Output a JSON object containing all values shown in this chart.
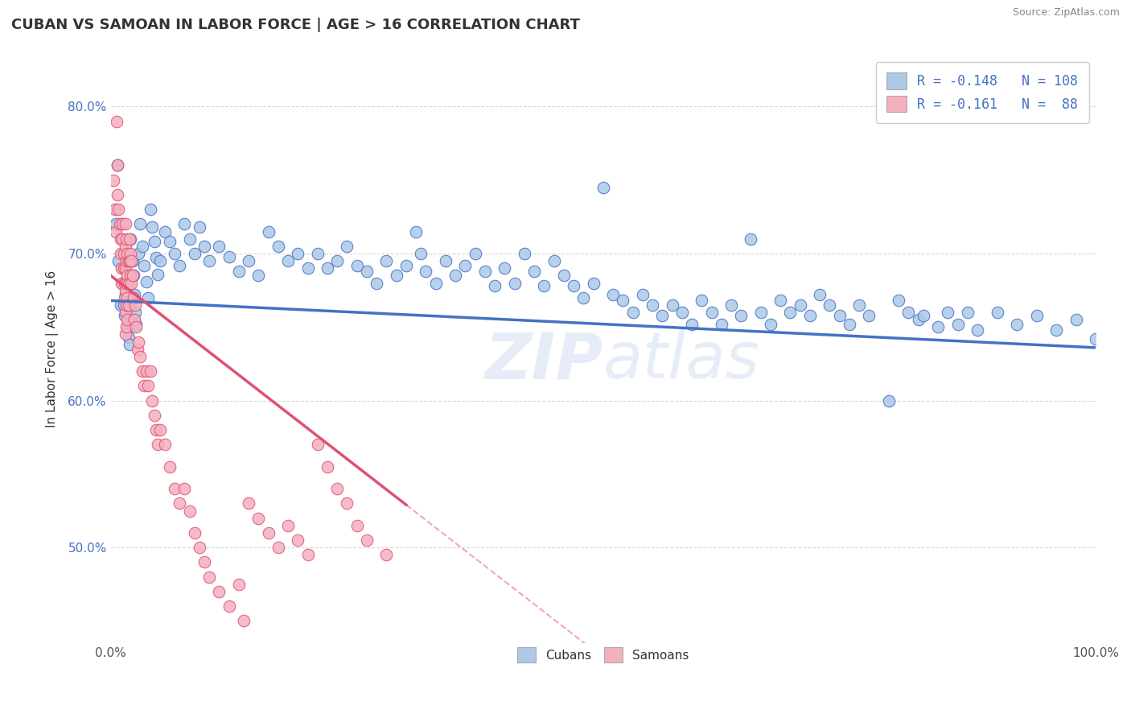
{
  "title": "CUBAN VS SAMOAN IN LABOR FORCE | AGE > 16 CORRELATION CHART",
  "source": "Source: ZipAtlas.com",
  "ylabel": "In Labor Force | Age > 16",
  "xlim": [
    0.0,
    1.0
  ],
  "ylim": [
    0.435,
    0.835
  ],
  "cuban_color": "#adc8e8",
  "samoan_color": "#f5b0c0",
  "cuban_line_color": "#4472c4",
  "samoan_line_color": "#e05070",
  "cuban_slope": -0.032,
  "cuban_intercept": 0.668,
  "samoan_slope": -0.52,
  "samoan_intercept": 0.685,
  "cuban_points": [
    [
      0.005,
      0.72
    ],
    [
      0.007,
      0.76
    ],
    [
      0.008,
      0.695
    ],
    [
      0.01,
      0.665
    ],
    [
      0.012,
      0.68
    ],
    [
      0.013,
      0.665
    ],
    [
      0.014,
      0.658
    ],
    [
      0.015,
      0.672
    ],
    [
      0.016,
      0.66
    ],
    [
      0.017,
      0.65
    ],
    [
      0.018,
      0.643
    ],
    [
      0.019,
      0.638
    ],
    [
      0.02,
      0.71
    ],
    [
      0.022,
      0.695
    ],
    [
      0.023,
      0.685
    ],
    [
      0.024,
      0.672
    ],
    [
      0.025,
      0.66
    ],
    [
      0.026,
      0.652
    ],
    [
      0.028,
      0.7
    ],
    [
      0.03,
      0.72
    ],
    [
      0.032,
      0.705
    ],
    [
      0.034,
      0.692
    ],
    [
      0.036,
      0.681
    ],
    [
      0.038,
      0.67
    ],
    [
      0.04,
      0.73
    ],
    [
      0.042,
      0.718
    ],
    [
      0.044,
      0.708
    ],
    [
      0.046,
      0.697
    ],
    [
      0.048,
      0.686
    ],
    [
      0.05,
      0.695
    ],
    [
      0.055,
      0.715
    ],
    [
      0.06,
      0.708
    ],
    [
      0.065,
      0.7
    ],
    [
      0.07,
      0.692
    ],
    [
      0.075,
      0.72
    ],
    [
      0.08,
      0.71
    ],
    [
      0.085,
      0.7
    ],
    [
      0.09,
      0.718
    ],
    [
      0.095,
      0.705
    ],
    [
      0.1,
      0.695
    ],
    [
      0.11,
      0.705
    ],
    [
      0.12,
      0.698
    ],
    [
      0.13,
      0.688
    ],
    [
      0.14,
      0.695
    ],
    [
      0.15,
      0.685
    ],
    [
      0.16,
      0.715
    ],
    [
      0.17,
      0.705
    ],
    [
      0.18,
      0.695
    ],
    [
      0.19,
      0.7
    ],
    [
      0.2,
      0.69
    ],
    [
      0.21,
      0.7
    ],
    [
      0.22,
      0.69
    ],
    [
      0.23,
      0.695
    ],
    [
      0.24,
      0.705
    ],
    [
      0.25,
      0.692
    ],
    [
      0.26,
      0.688
    ],
    [
      0.27,
      0.68
    ],
    [
      0.28,
      0.695
    ],
    [
      0.29,
      0.685
    ],
    [
      0.3,
      0.692
    ],
    [
      0.31,
      0.715
    ],
    [
      0.315,
      0.7
    ],
    [
      0.32,
      0.688
    ],
    [
      0.33,
      0.68
    ],
    [
      0.34,
      0.695
    ],
    [
      0.35,
      0.685
    ],
    [
      0.36,
      0.692
    ],
    [
      0.37,
      0.7
    ],
    [
      0.38,
      0.688
    ],
    [
      0.39,
      0.678
    ],
    [
      0.4,
      0.69
    ],
    [
      0.41,
      0.68
    ],
    [
      0.42,
      0.7
    ],
    [
      0.43,
      0.688
    ],
    [
      0.44,
      0.678
    ],
    [
      0.45,
      0.695
    ],
    [
      0.46,
      0.685
    ],
    [
      0.47,
      0.678
    ],
    [
      0.48,
      0.67
    ],
    [
      0.49,
      0.68
    ],
    [
      0.5,
      0.745
    ],
    [
      0.51,
      0.672
    ],
    [
      0.52,
      0.668
    ],
    [
      0.53,
      0.66
    ],
    [
      0.54,
      0.672
    ],
    [
      0.55,
      0.665
    ],
    [
      0.56,
      0.658
    ],
    [
      0.57,
      0.665
    ],
    [
      0.58,
      0.66
    ],
    [
      0.59,
      0.652
    ],
    [
      0.6,
      0.668
    ],
    [
      0.61,
      0.66
    ],
    [
      0.62,
      0.652
    ],
    [
      0.63,
      0.665
    ],
    [
      0.64,
      0.658
    ],
    [
      0.65,
      0.71
    ],
    [
      0.66,
      0.66
    ],
    [
      0.67,
      0.652
    ],
    [
      0.68,
      0.668
    ],
    [
      0.69,
      0.66
    ],
    [
      0.7,
      0.665
    ],
    [
      0.71,
      0.658
    ],
    [
      0.72,
      0.672
    ],
    [
      0.73,
      0.665
    ],
    [
      0.74,
      0.658
    ],
    [
      0.75,
      0.652
    ],
    [
      0.76,
      0.665
    ],
    [
      0.77,
      0.658
    ],
    [
      0.79,
      0.6
    ],
    [
      0.8,
      0.668
    ],
    [
      0.81,
      0.66
    ],
    [
      0.82,
      0.655
    ],
    [
      0.825,
      0.658
    ],
    [
      0.84,
      0.65
    ],
    [
      0.85,
      0.66
    ],
    [
      0.86,
      0.652
    ],
    [
      0.87,
      0.66
    ],
    [
      0.88,
      0.648
    ],
    [
      0.9,
      0.66
    ],
    [
      0.92,
      0.652
    ],
    [
      0.94,
      0.658
    ],
    [
      0.96,
      0.648
    ],
    [
      0.98,
      0.655
    ],
    [
      1.0,
      0.642
    ]
  ],
  "samoan_points": [
    [
      0.003,
      0.75
    ],
    [
      0.004,
      0.73
    ],
    [
      0.005,
      0.715
    ],
    [
      0.006,
      0.79
    ],
    [
      0.007,
      0.76
    ],
    [
      0.007,
      0.74
    ],
    [
      0.008,
      0.73
    ],
    [
      0.009,
      0.72
    ],
    [
      0.01,
      0.71
    ],
    [
      0.01,
      0.7
    ],
    [
      0.011,
      0.69
    ],
    [
      0.011,
      0.68
    ],
    [
      0.012,
      0.72
    ],
    [
      0.012,
      0.71
    ],
    [
      0.013,
      0.7
    ],
    [
      0.013,
      0.69
    ],
    [
      0.014,
      0.68
    ],
    [
      0.014,
      0.67
    ],
    [
      0.015,
      0.72
    ],
    [
      0.015,
      0.705
    ],
    [
      0.015,
      0.69
    ],
    [
      0.015,
      0.675
    ],
    [
      0.015,
      0.66
    ],
    [
      0.015,
      0.645
    ],
    [
      0.016,
      0.71
    ],
    [
      0.016,
      0.695
    ],
    [
      0.016,
      0.68
    ],
    [
      0.016,
      0.665
    ],
    [
      0.016,
      0.65
    ],
    [
      0.017,
      0.7
    ],
    [
      0.017,
      0.685
    ],
    [
      0.017,
      0.67
    ],
    [
      0.017,
      0.655
    ],
    [
      0.018,
      0.695
    ],
    [
      0.018,
      0.68
    ],
    [
      0.018,
      0.665
    ],
    [
      0.019,
      0.71
    ],
    [
      0.019,
      0.695
    ],
    [
      0.02,
      0.7
    ],
    [
      0.02,
      0.685
    ],
    [
      0.021,
      0.695
    ],
    [
      0.021,
      0.68
    ],
    [
      0.022,
      0.685
    ],
    [
      0.023,
      0.67
    ],
    [
      0.024,
      0.655
    ],
    [
      0.025,
      0.665
    ],
    [
      0.026,
      0.65
    ],
    [
      0.027,
      0.635
    ],
    [
      0.028,
      0.64
    ],
    [
      0.03,
      0.63
    ],
    [
      0.032,
      0.62
    ],
    [
      0.034,
      0.61
    ],
    [
      0.036,
      0.62
    ],
    [
      0.038,
      0.61
    ],
    [
      0.04,
      0.62
    ],
    [
      0.042,
      0.6
    ],
    [
      0.044,
      0.59
    ],
    [
      0.046,
      0.58
    ],
    [
      0.048,
      0.57
    ],
    [
      0.05,
      0.58
    ],
    [
      0.055,
      0.57
    ],
    [
      0.06,
      0.555
    ],
    [
      0.065,
      0.54
    ],
    [
      0.07,
      0.53
    ],
    [
      0.075,
      0.54
    ],
    [
      0.08,
      0.525
    ],
    [
      0.085,
      0.51
    ],
    [
      0.09,
      0.5
    ],
    [
      0.095,
      0.49
    ],
    [
      0.1,
      0.48
    ],
    [
      0.11,
      0.47
    ],
    [
      0.12,
      0.46
    ],
    [
      0.13,
      0.475
    ],
    [
      0.135,
      0.45
    ],
    [
      0.14,
      0.53
    ],
    [
      0.15,
      0.52
    ],
    [
      0.16,
      0.51
    ],
    [
      0.17,
      0.5
    ],
    [
      0.18,
      0.515
    ],
    [
      0.19,
      0.505
    ],
    [
      0.2,
      0.495
    ],
    [
      0.21,
      0.57
    ],
    [
      0.22,
      0.555
    ],
    [
      0.23,
      0.54
    ],
    [
      0.24,
      0.53
    ],
    [
      0.25,
      0.515
    ],
    [
      0.26,
      0.505
    ],
    [
      0.28,
      0.495
    ]
  ]
}
